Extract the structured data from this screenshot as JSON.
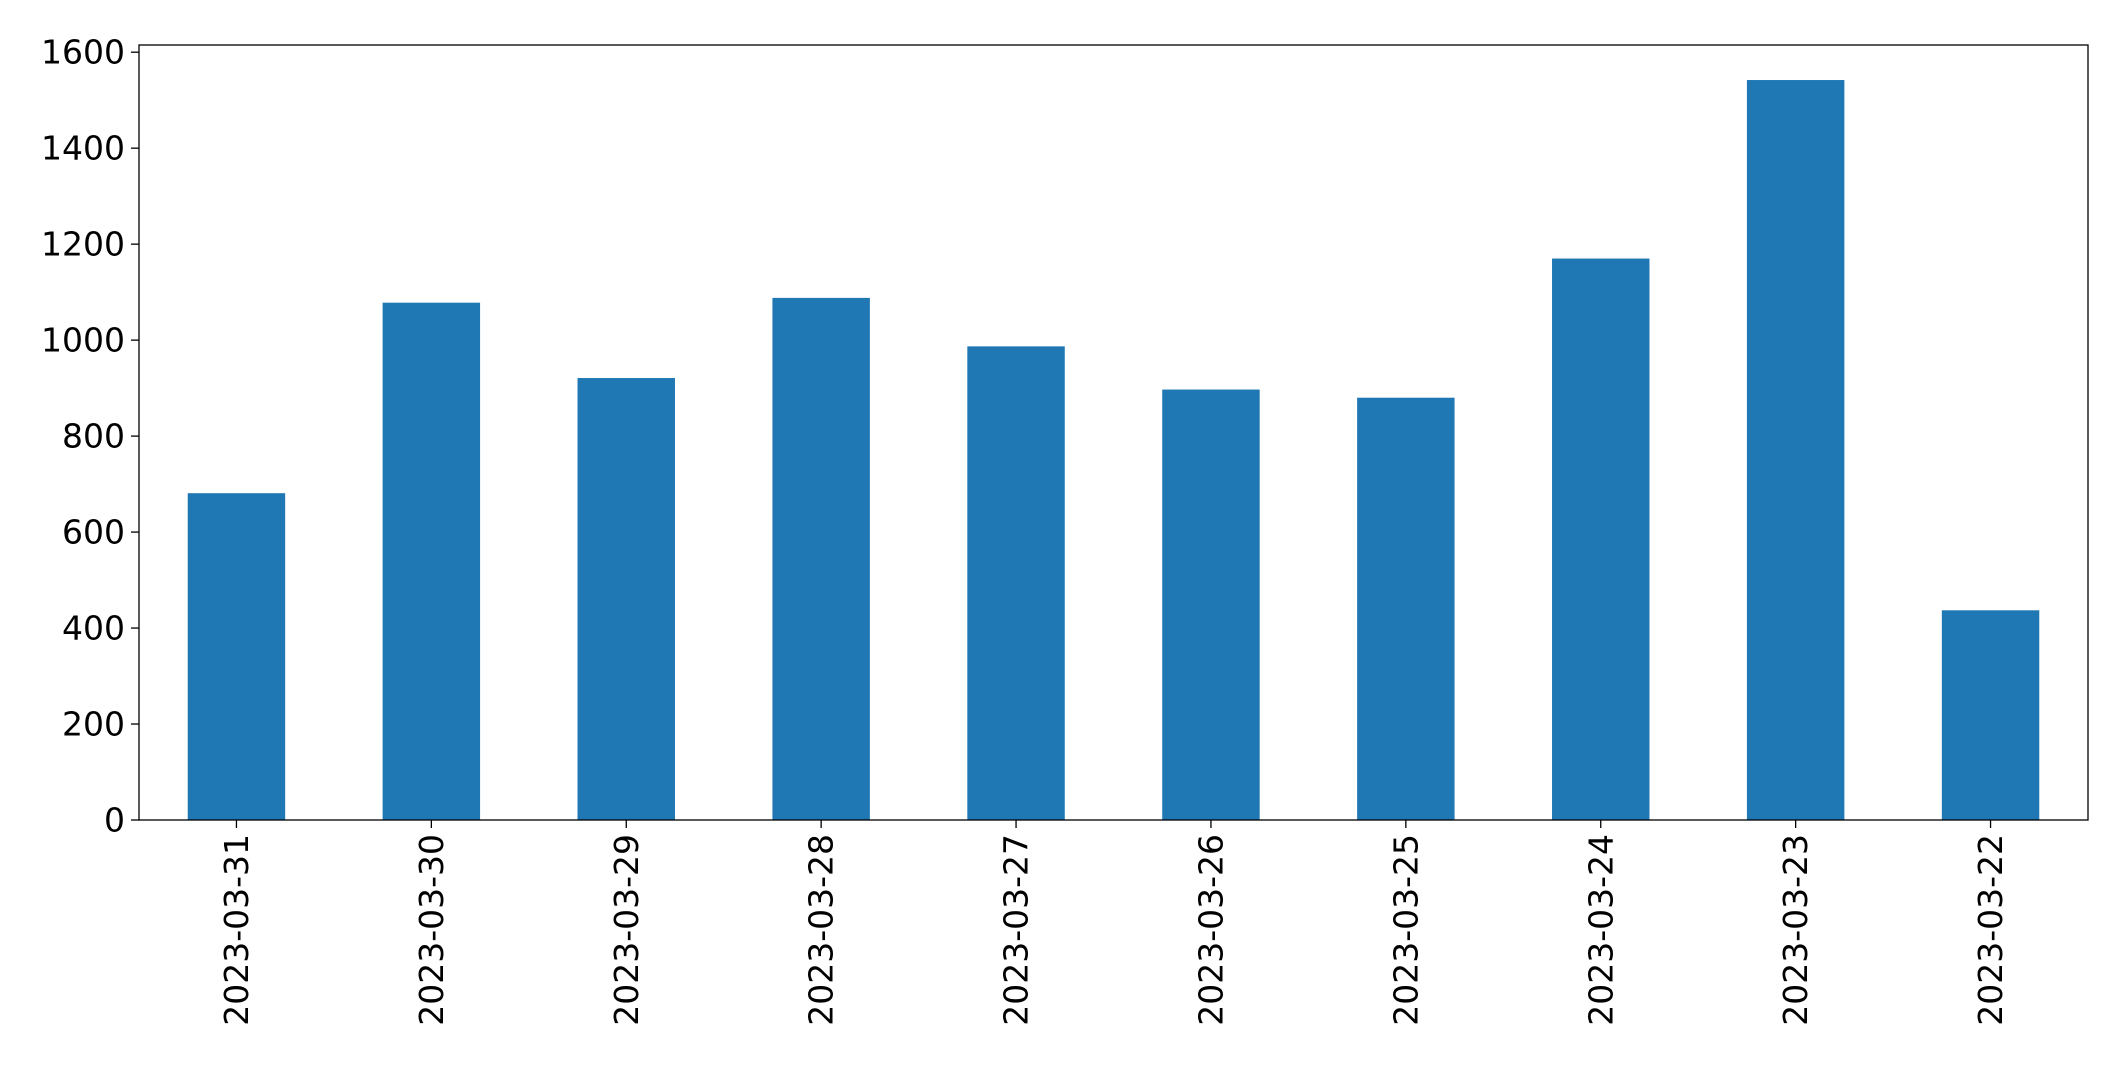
{
  "chart_data": {
    "type": "bar",
    "title": "",
    "xlabel": "",
    "ylabel": "",
    "categories": [
      "2023-03-31",
      "2023-03-30",
      "2023-03-29",
      "2023-03-28",
      "2023-03-27",
      "2023-03-26",
      "2023-03-25",
      "2023-03-24",
      "2023-03-23",
      "2023-03-22"
    ],
    "values": [
      681,
      1078,
      921,
      1088,
      987,
      897,
      880,
      1170,
      1542,
      437
    ],
    "ylim": [
      0,
      1615
    ],
    "yticks": [
      0,
      200,
      400,
      600,
      800,
      1000,
      1200,
      1400,
      1600
    ],
    "ytick_labels": [
      "0",
      "200",
      "400",
      "600",
      "800",
      "1000",
      "1200",
      "1400",
      "1600"
    ],
    "xtick_rotation": "vertical",
    "grid": false,
    "legend": "none",
    "bar_color": "#1f77b4"
  }
}
